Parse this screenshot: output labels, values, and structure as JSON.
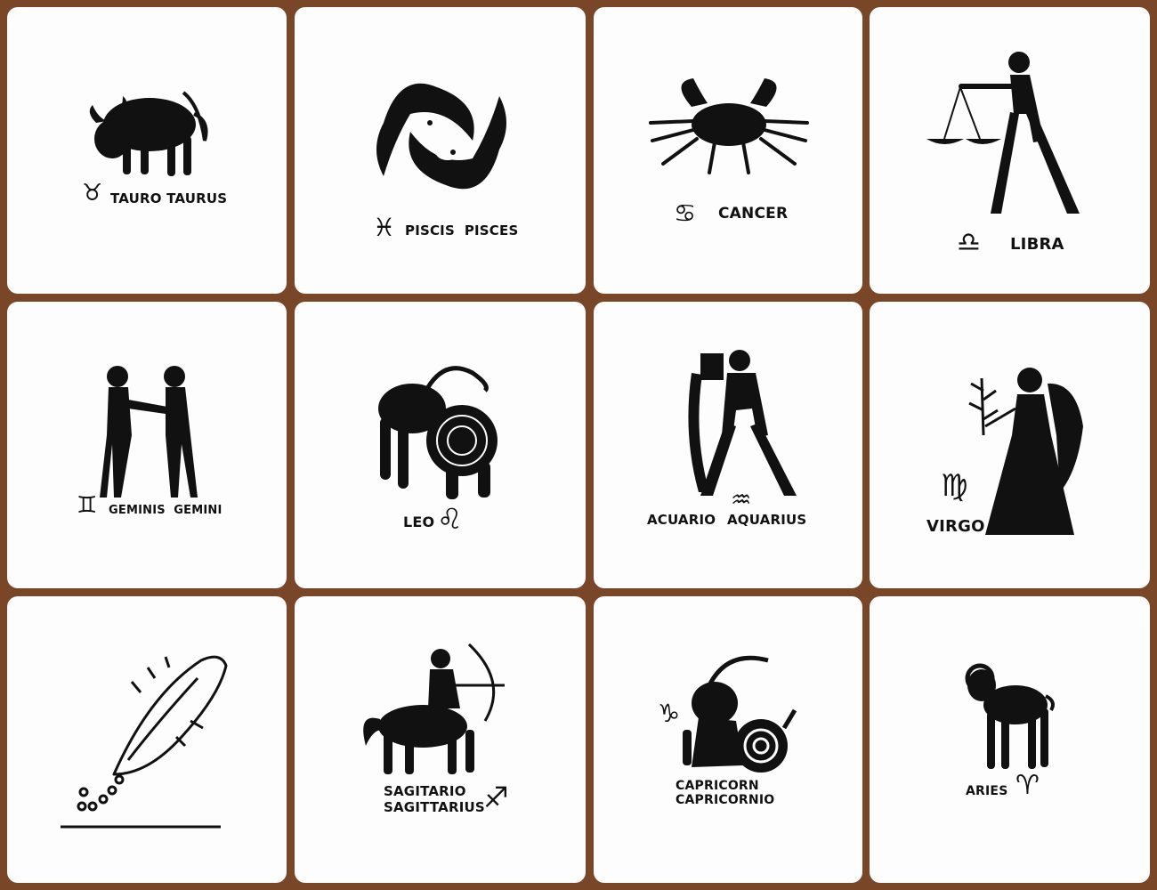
{
  "colors": {
    "frame": "#7a4628",
    "tile": "#fdfdfd",
    "ink": "#111111"
  },
  "signs": {
    "taurus": {
      "symbol": "♉",
      "label": "TAURO TAURUS"
    },
    "pisces": {
      "symbol": "♓",
      "label": "PISCIS  PISCES"
    },
    "cancer": {
      "symbol": "♋",
      "label": "CANCER"
    },
    "libra": {
      "symbol": "♎",
      "label": "LIBRA"
    },
    "gemini": {
      "symbol": "♊",
      "label": "GEMINIS  GEMINI"
    },
    "leo": {
      "symbol": "♌",
      "label": "LEO"
    },
    "aquarius": {
      "symbol": "♒",
      "label_1": "ACUARIO",
      "label_2": "AQUARIUS"
    },
    "virgo": {
      "symbol": "♍",
      "label": "VIRGO"
    },
    "sagittarius": {
      "symbol": "♐",
      "label_1": "SAGITARIO",
      "label_2": "SAGITTARIUS"
    },
    "capricorn": {
      "symbol": "♑",
      "label_1": "CAPRICORN",
      "label_2": "CAPRICORNIO"
    },
    "aries": {
      "symbol": "♈",
      "label": "ARIES"
    }
  }
}
